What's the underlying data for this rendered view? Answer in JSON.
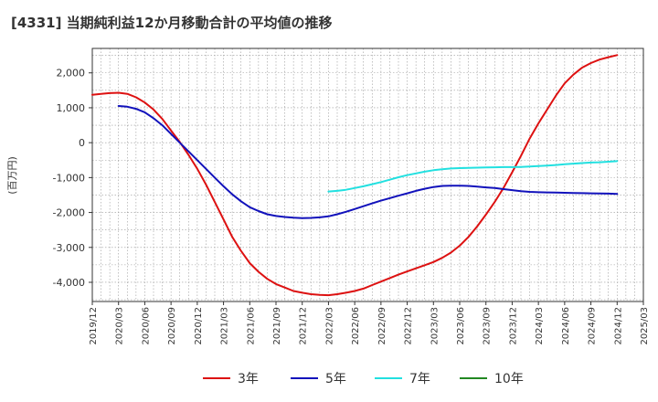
{
  "chart_data": {
    "type": "line",
    "title": "[4331]  当期純利益12か月移動合計の平均値の推移",
    "ylabel": "(百万円)",
    "ylim": [
      -4550,
      2700
    ],
    "yticks": [
      2000,
      1000,
      0,
      -1000,
      -2000,
      -3000,
      -4000
    ],
    "ytick_labels": [
      "2,000",
      "1,000",
      "0",
      "-1,000",
      "-2,000",
      "-3,000",
      "-4,000"
    ],
    "xlim": [
      "2019-12",
      "2025-03"
    ],
    "xtick_labels": [
      "2019/12",
      "2020/03",
      "2020/06",
      "2020/09",
      "2020/12",
      "2021/03",
      "2021/06",
      "2021/09",
      "2021/12",
      "2022/03",
      "2022/06",
      "2022/09",
      "2022/12",
      "2023/03",
      "2023/06",
      "2023/09",
      "2023/12",
      "2024/03",
      "2024/06",
      "2024/09",
      "2024/12",
      "2025/03"
    ],
    "grid": true,
    "legend_position": "bottom",
    "series": [
      {
        "name": "3年",
        "color": "#dd1111",
        "x": [
          "2019-12",
          "2020-01",
          "2020-02",
          "2020-03",
          "2020-04",
          "2020-05",
          "2020-06",
          "2020-07",
          "2020-08",
          "2020-09",
          "2020-10",
          "2020-11",
          "2020-12",
          "2021-01",
          "2021-02",
          "2021-03",
          "2021-04",
          "2021-05",
          "2021-06",
          "2021-07",
          "2021-08",
          "2021-09",
          "2021-10",
          "2021-11",
          "2021-12",
          "2022-01",
          "2022-02",
          "2022-03",
          "2022-04",
          "2022-05",
          "2022-06",
          "2022-07",
          "2022-08",
          "2022-09",
          "2022-10",
          "2022-11",
          "2022-12",
          "2023-01",
          "2023-02",
          "2023-03",
          "2023-04",
          "2023-05",
          "2023-06",
          "2023-07",
          "2023-08",
          "2023-09",
          "2023-10",
          "2023-11",
          "2023-12",
          "2024-01",
          "2024-02",
          "2024-03",
          "2024-04",
          "2024-05",
          "2024-06",
          "2024-07",
          "2024-08",
          "2024-09",
          "2024-10",
          "2024-11",
          "2024-12"
        ],
        "y": [
          1370,
          1400,
          1420,
          1430,
          1400,
          1300,
          1150,
          950,
          680,
          350,
          20,
          -350,
          -750,
          -1200,
          -1700,
          -2200,
          -2700,
          -3100,
          -3450,
          -3700,
          -3900,
          -4050,
          -4150,
          -4250,
          -4300,
          -4340,
          -4360,
          -4370,
          -4340,
          -4300,
          -4250,
          -4180,
          -4080,
          -3980,
          -3880,
          -3780,
          -3690,
          -3600,
          -3510,
          -3420,
          -3300,
          -3150,
          -2950,
          -2700,
          -2400,
          -2060,
          -1700,
          -1300,
          -850,
          -380,
          120,
          550,
          950,
          1350,
          1700,
          1950,
          2150,
          2280,
          2380,
          2450,
          2510
        ]
      },
      {
        "name": "5年",
        "color": "#1111bb",
        "x": [
          "2020-03",
          "2020-04",
          "2020-05",
          "2020-06",
          "2020-07",
          "2020-08",
          "2020-09",
          "2020-10",
          "2020-11",
          "2020-12",
          "2021-01",
          "2021-02",
          "2021-03",
          "2021-04",
          "2021-05",
          "2021-06",
          "2021-07",
          "2021-08",
          "2021-09",
          "2021-10",
          "2021-11",
          "2021-12",
          "2022-01",
          "2022-02",
          "2022-03",
          "2022-04",
          "2022-05",
          "2022-06",
          "2022-07",
          "2022-08",
          "2022-09",
          "2022-10",
          "2022-11",
          "2022-12",
          "2023-01",
          "2023-02",
          "2023-03",
          "2023-04",
          "2023-05",
          "2023-06",
          "2023-07",
          "2023-08",
          "2023-09",
          "2023-10",
          "2023-11",
          "2023-12",
          "2024-01",
          "2024-02",
          "2024-03",
          "2024-04",
          "2024-05",
          "2024-06",
          "2024-07",
          "2024-08",
          "2024-09",
          "2024-10",
          "2024-11",
          "2024-12"
        ],
        "y": [
          1050,
          1030,
          970,
          870,
          700,
          500,
          250,
          0,
          -250,
          -500,
          -750,
          -1000,
          -1250,
          -1480,
          -1680,
          -1850,
          -1960,
          -2050,
          -2100,
          -2130,
          -2150,
          -2160,
          -2155,
          -2140,
          -2110,
          -2050,
          -1980,
          -1900,
          -1820,
          -1740,
          -1660,
          -1590,
          -1520,
          -1450,
          -1380,
          -1320,
          -1270,
          -1240,
          -1230,
          -1230,
          -1240,
          -1260,
          -1280,
          -1300,
          -1330,
          -1360,
          -1390,
          -1410,
          -1420,
          -1425,
          -1430,
          -1435,
          -1440,
          -1445,
          -1450,
          -1455,
          -1460,
          -1470
        ]
      },
      {
        "name": "7年",
        "color": "#22e0e0",
        "x": [
          "2022-03",
          "2022-04",
          "2022-05",
          "2022-06",
          "2022-07",
          "2022-08",
          "2022-09",
          "2022-10",
          "2022-11",
          "2022-12",
          "2023-01",
          "2023-02",
          "2023-03",
          "2023-04",
          "2023-05",
          "2023-06",
          "2023-07",
          "2023-08",
          "2023-09",
          "2023-10",
          "2023-11",
          "2023-12",
          "2024-01",
          "2024-02",
          "2024-03",
          "2024-04",
          "2024-05",
          "2024-06",
          "2024-07",
          "2024-08",
          "2024-09",
          "2024-10",
          "2024-11",
          "2024-12"
        ],
        "y": [
          -1400,
          -1380,
          -1350,
          -1300,
          -1250,
          -1190,
          -1130,
          -1060,
          -990,
          -930,
          -880,
          -830,
          -790,
          -760,
          -740,
          -730,
          -720,
          -715,
          -710,
          -705,
          -700,
          -700,
          -695,
          -685,
          -670,
          -655,
          -640,
          -620,
          -600,
          -585,
          -570,
          -560,
          -545,
          -530
        ]
      },
      {
        "name": "10年",
        "color": "#228822",
        "x": [],
        "y": []
      }
    ]
  }
}
